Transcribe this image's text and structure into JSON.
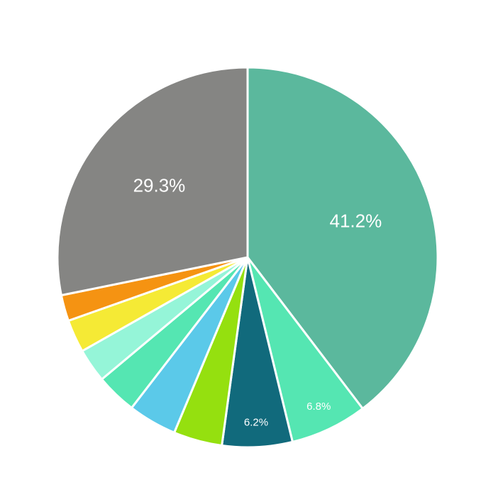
{
  "chart_data": {
    "type": "pie",
    "start": "12 o'clock, clockwise",
    "slices": [
      {
        "value": 41.2,
        "label": "41.2%",
        "color": "#5bb89d"
      },
      {
        "value": 6.8,
        "label": "6.8%",
        "color": "#55e6b2"
      },
      {
        "value": 6.2,
        "label": "6.2%",
        "color": "#116a7c"
      },
      {
        "value": 4.3,
        "label": "",
        "color": "#95e00f"
      },
      {
        "value": 4.3,
        "label": "",
        "color": "#5bc9e9"
      },
      {
        "value": 3.6,
        "label": "",
        "color": "#55e6b2"
      },
      {
        "value": 3.0,
        "label": "",
        "color": "#95f5d8"
      },
      {
        "value": 2.9,
        "label": "",
        "color": "#f5ea35"
      },
      {
        "value": 2.3,
        "label": "",
        "color": "#f59312"
      },
      {
        "value": 29.3,
        "label": "29.3%",
        "color": "#858583"
      }
    ]
  }
}
